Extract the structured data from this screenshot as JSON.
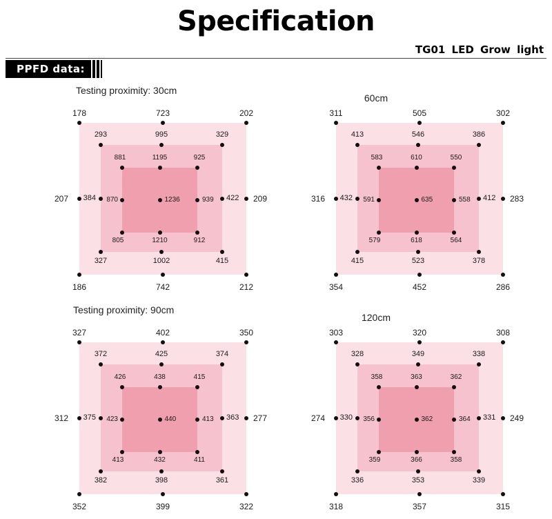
{
  "header": {
    "title": "Specification",
    "model": "TG01  LED  Grow  light",
    "section_tag": "PPFD data:"
  },
  "grids": [
    {
      "caption": "Testing proximity:  30cm",
      "outer": {
        "tl": "178",
        "tc": "723",
        "tr": "202",
        "ml": "207",
        "mr": "209",
        "bl": "186",
        "bc": "742",
        "br": "212"
      },
      "middle": {
        "tl": "293",
        "tc": "995",
        "tr": "329",
        "ml": "384",
        "mr": "422",
        "bl": "327",
        "bc": "1002",
        "br": "415"
      },
      "inner": {
        "tl": "881",
        "tc": "1195",
        "tr": "925",
        "ml": "870",
        "c": "1236",
        "mr": "939",
        "bl": "805",
        "bc": "1210",
        "br": "912"
      }
    },
    {
      "caption": "60cm",
      "outer": {
        "tl": "311",
        "tc": "505",
        "tr": "302",
        "ml": "316",
        "mr": "283",
        "bl": "354",
        "bc": "452",
        "br": "286"
      },
      "middle": {
        "tl": "413",
        "tc": "546",
        "tr": "386",
        "ml": "432",
        "mr": "412",
        "bl": "415",
        "bc": "523",
        "br": "378"
      },
      "inner": {
        "tl": "583",
        "tc": "610",
        "tr": "550",
        "ml": "591",
        "c": "635",
        "mr": "558",
        "bl": "579",
        "bc": "618",
        "br": "564"
      }
    },
    {
      "caption": "Testing proximity:  90cm",
      "outer": {
        "tl": "327",
        "tc": "402",
        "tr": "350",
        "ml": "312",
        "mr": "277",
        "bl": "352",
        "bc": "399",
        "br": "322"
      },
      "middle": {
        "tl": "372",
        "tc": "425",
        "tr": "374",
        "ml": "375",
        "mr": "363",
        "bl": "382",
        "bc": "398",
        "br": "361"
      },
      "inner": {
        "tl": "426",
        "tc": "438",
        "tr": "415",
        "ml": "423",
        "c": "440",
        "mr": "413",
        "bl": "413",
        "bc": "432",
        "br": "411"
      }
    },
    {
      "caption": "120cm",
      "outer": {
        "tl": "303",
        "tc": "320",
        "tr": "308",
        "ml": "274",
        "mr": "249",
        "bl": "318",
        "bc": "357",
        "br": "315"
      },
      "middle": {
        "tl": "328",
        "tc": "349",
        "tr": "338",
        "ml": "330",
        "mr": "331",
        "bl": "336",
        "bc": "353",
        "br": "339"
      },
      "inner": {
        "tl": "358",
        "tc": "363",
        "tr": "362",
        "ml": "356",
        "c": "362",
        "mr": "364",
        "bl": "359",
        "bc": "366",
        "br": "358"
      }
    }
  ]
}
